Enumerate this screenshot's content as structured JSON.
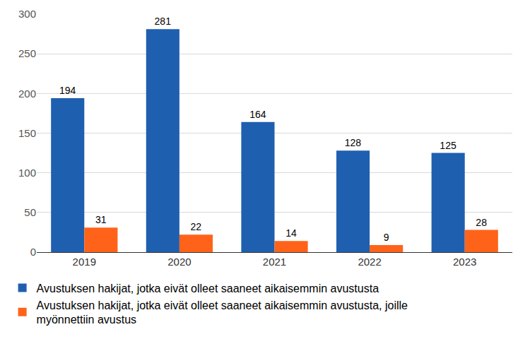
{
  "chart_data": {
    "type": "bar",
    "categories": [
      "2019",
      "2020",
      "2021",
      "2022",
      "2023"
    ],
    "series": [
      {
        "name": "Avustuksen hakijat, jotka eivät olleet saaneet aikaisemmin avustusta",
        "color": "#1f5fb0",
        "values": [
          194,
          281,
          164,
          128,
          125
        ]
      },
      {
        "name": "Avustuksen hakijat, jotka eivät olleet saaneet aikaisemmin avustusta, joille myönnettiin avustus",
        "color": "#ff6319",
        "values": [
          31,
          22,
          14,
          9,
          28
        ]
      }
    ],
    "ylim": [
      0,
      300
    ],
    "yticks": [
      0,
      50,
      100,
      150,
      200,
      250,
      300
    ],
    "grid": true,
    "data_labels": true,
    "legend": "bottom"
  }
}
